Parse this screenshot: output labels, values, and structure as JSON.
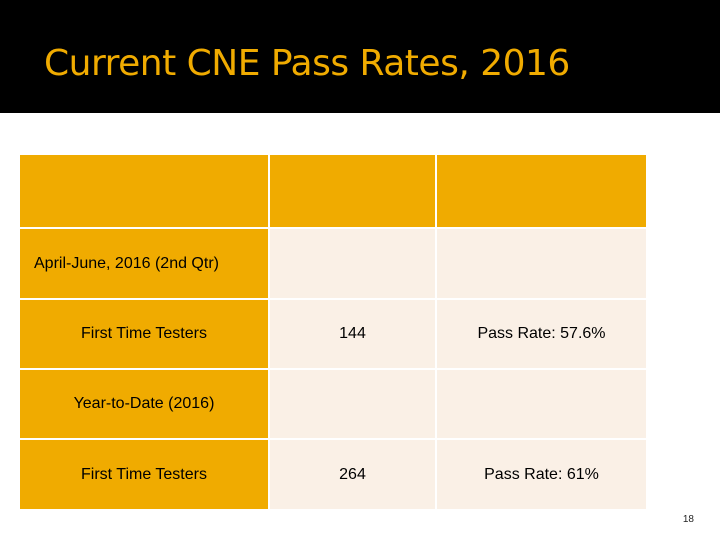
{
  "slide": {
    "title": "Current CNE Pass Rates, 2016",
    "page_number": "18"
  },
  "table": {
    "header": [
      "",
      "",
      ""
    ],
    "rows": [
      {
        "label": "April-June, 2016 (2nd Qtr)",
        "value": "",
        "rate": ""
      },
      {
        "label": "First Time Testers",
        "value": "144",
        "rate": "Pass Rate: 57.6%"
      },
      {
        "label": "Year-to-Date (2016)",
        "value": "",
        "rate": ""
      },
      {
        "label": "First Time Testers",
        "value": "264",
        "rate": "Pass Rate: 61%"
      }
    ]
  },
  "colors": {
    "title_bar": "#000000",
    "accent_gold": "#f0ab00",
    "cream": "#faf0e6"
  }
}
